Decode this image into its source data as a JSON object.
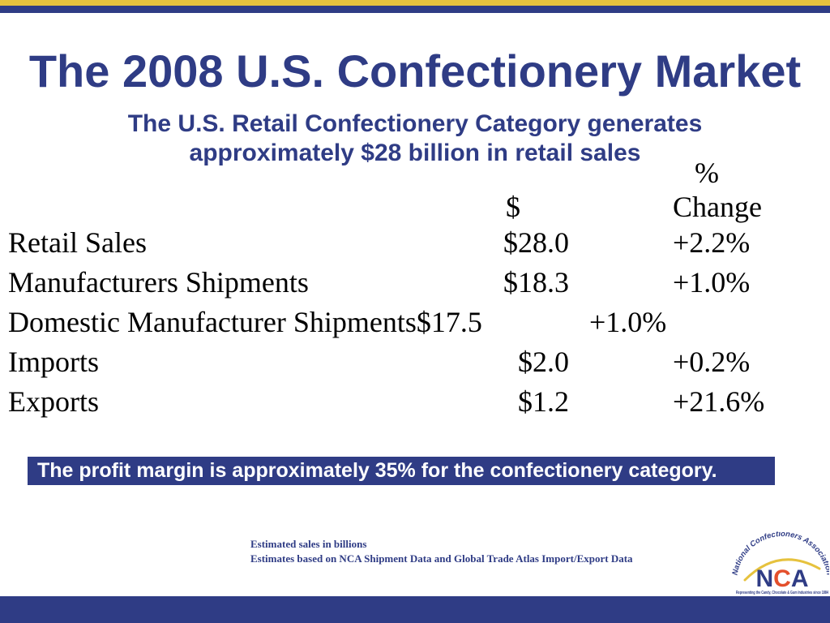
{
  "colors": {
    "navy": "#2f3c85",
    "gold": "#e6c23e",
    "ink": "#000000",
    "white": "#ffffff",
    "logo_red": "#e4502c"
  },
  "slide": {
    "title": "The 2008 U.S. Confectionery Market",
    "subtitle": [
      "The U.S. Retail Confectionery Category generates",
      "approximately $28 billion in retail sales"
    ]
  },
  "table": {
    "header": {
      "value_symbol": "$",
      "change_symbol": "%",
      "change_label": "Change"
    },
    "rows": [
      {
        "label": "Retail Sales",
        "value": "$28.0",
        "change": "+2.2%"
      },
      {
        "label": "Manufacturers Shipments",
        "value": "$18.3",
        "change": "+1.0%"
      },
      {
        "label": "Domestic Manufacturer Shipments",
        "value": "$17.5",
        "change": "+1.0%"
      },
      {
        "label": "Imports",
        "value": "$2.0",
        "change": "+0.2%"
      },
      {
        "label": "Exports",
        "value": "$1.2",
        "change": "+21.6%"
      }
    ]
  },
  "callout": "The profit margin is approximately 35% for the confectionery category.",
  "footnotes": [
    "Estimated sales in billions",
    "Estimates based on NCA Shipment Data and Global Trade Atlas Import/Export Data"
  ],
  "logo": {
    "arc_text": "National Confectioners Association",
    "abbr_letters": [
      "N",
      "C",
      "A"
    ],
    "tagline": "Representing the Candy, Chocolate & Gum Industries since 1884"
  }
}
